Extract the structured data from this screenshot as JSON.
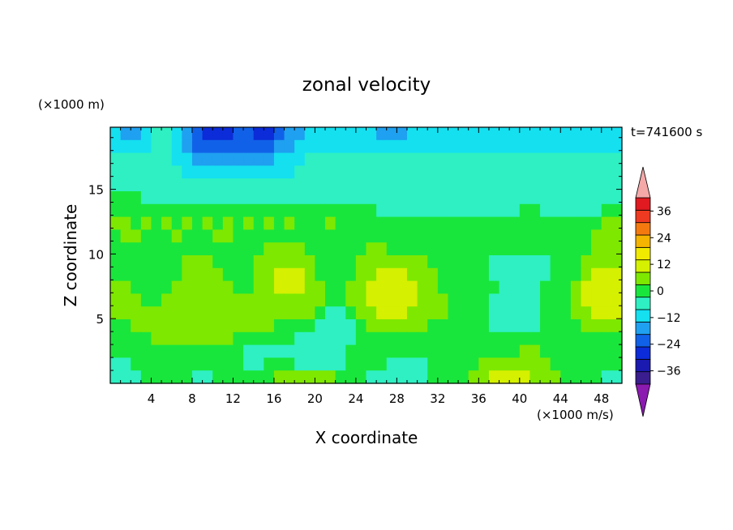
{
  "chart_data": {
    "type": "heatmap",
    "title": "zonal velocity",
    "xlabel": "X coordinate",
    "ylabel": "Z coordinate",
    "x_unit": "(×1000 m/s)",
    "y_unit": "(×1000 m)",
    "time_label": "t=741600 s",
    "xlim": [
      0,
      50
    ],
    "ylim": [
      0,
      19.8
    ],
    "x_ticks": [
      4,
      8,
      12,
      16,
      20,
      24,
      28,
      32,
      36,
      40,
      44,
      48
    ],
    "y_ticks": [
      5,
      10,
      15
    ],
    "colorbar": {
      "levels": [
        -42,
        -36,
        -30,
        -24,
        -18,
        -12,
        -6,
        0,
        6,
        12,
        18,
        24,
        30,
        36,
        42
      ],
      "labels": [
        -36,
        -24,
        -12,
        0,
        12,
        24,
        36
      ],
      "colors": [
        "#7a13a8",
        "#3a1d8e",
        "#1a1ab0",
        "#0b2cd8",
        "#1161e8",
        "#1fa0f0",
        "#14e0f0",
        "#2ef0c2",
        "#19e63c",
        "#7ee800",
        "#d5f000",
        "#f0ea00",
        "#f5b400",
        "#f47a10",
        "#ee3a20",
        "#e01a20",
        "#f4a0a0"
      ],
      "under_color": "#8a1ab0",
      "over_color": "#f4a8a8"
    },
    "field": [
      [
        -12,
        -18,
        -18,
        -12,
        -6,
        -6,
        -12,
        -18,
        -24,
        -30,
        -30,
        -30,
        -24,
        -24,
        -30,
        -30,
        -24,
        -18,
        -18,
        -12,
        -12,
        -12,
        -12,
        -12,
        -12,
        -12,
        -18,
        -18,
        -18,
        -12,
        -12,
        -12,
        -12,
        -12,
        -12,
        -12,
        -12,
        -12,
        -12,
        -12,
        -12,
        -12,
        -12,
        -12,
        -12,
        -12,
        -12,
        -12,
        -12,
        -12
      ],
      [
        -12,
        -12,
        -12,
        -12,
        -6,
        -6,
        -12,
        -18,
        -24,
        -24,
        -24,
        -24,
        -24,
        -24,
        -24,
        -24,
        -18,
        -18,
        -12,
        -12,
        -12,
        -12,
        -12,
        -12,
        -12,
        -12,
        -12,
        -12,
        -12,
        -12,
        -12,
        -12,
        -12,
        -12,
        -12,
        -12,
        -12,
        -12,
        -12,
        -12,
        -12,
        -12,
        -12,
        -12,
        -12,
        -12,
        -12,
        -12,
        -12,
        -12
      ],
      [
        -6,
        -6,
        -6,
        -6,
        -6,
        -6,
        -12,
        -12,
        -18,
        -18,
        -18,
        -18,
        -18,
        -18,
        -18,
        -18,
        -12,
        -12,
        -12,
        -6,
        -6,
        -6,
        -6,
        -6,
        -6,
        -6,
        -6,
        -6,
        -6,
        -6,
        -6,
        -6,
        -6,
        -6,
        -6,
        -6,
        -6,
        -6,
        -6,
        -6,
        -6,
        -6,
        -6,
        -6,
        -6,
        -6,
        -6,
        -6,
        -6,
        -6
      ],
      [
        -6,
        -6,
        -6,
        -6,
        -6,
        -6,
        -6,
        -12,
        -12,
        -12,
        -12,
        -12,
        -12,
        -12,
        -12,
        -12,
        -12,
        -12,
        -6,
        -6,
        -6,
        -6,
        -6,
        -6,
        -6,
        -6,
        -6,
        -6,
        -6,
        -6,
        -6,
        -6,
        -6,
        -6,
        -6,
        -6,
        -6,
        -6,
        -6,
        -6,
        -6,
        -6,
        -6,
        -6,
        -6,
        -6,
        -6,
        -6,
        -6,
        -6
      ],
      [
        -6,
        -6,
        -6,
        -6,
        -6,
        -6,
        -6,
        -6,
        -6,
        -6,
        -6,
        -6,
        -6,
        -6,
        -6,
        -6,
        -6,
        -6,
        -6,
        -6,
        -6,
        -6,
        -6,
        -6,
        -6,
        -6,
        -6,
        -6,
        -6,
        -6,
        -6,
        -6,
        -6,
        -6,
        -6,
        -6,
        -6,
        -6,
        -6,
        -6,
        -6,
        -6,
        -6,
        -6,
        -6,
        -6,
        -6,
        -6,
        -6,
        -6
      ],
      [
        0,
        0,
        0,
        -6,
        -6,
        -6,
        -6,
        -6,
        -6,
        -6,
        -6,
        -6,
        -6,
        -6,
        -6,
        -6,
        -6,
        -6,
        -6,
        -6,
        -6,
        -6,
        -6,
        -6,
        -6,
        -6,
        -6,
        -6,
        -6,
        -6,
        -6,
        -6,
        -6,
        -6,
        -6,
        -6,
        -6,
        -6,
        -6,
        -6,
        -6,
        -6,
        -6,
        -6,
        -6,
        -6,
        -6,
        -6,
        -6,
        -6
      ],
      [
        0,
        0,
        0,
        0,
        0,
        0,
        0,
        0,
        0,
        0,
        0,
        0,
        0,
        0,
        0,
        0,
        0,
        0,
        0,
        0,
        0,
        0,
        0,
        0,
        0,
        0,
        -6,
        -6,
        -6,
        -6,
        -6,
        -6,
        -6,
        -6,
        -6,
        -6,
        -6,
        -6,
        -6,
        -6,
        0,
        0,
        -6,
        -6,
        -6,
        -6,
        -6,
        -6,
        0,
        0
      ],
      [
        6,
        6,
        0,
        6,
        0,
        6,
        0,
        6,
        0,
        6,
        0,
        6,
        0,
        6,
        0,
        6,
        0,
        6,
        0,
        0,
        0,
        6,
        0,
        0,
        0,
        0,
        0,
        0,
        0,
        0,
        0,
        0,
        0,
        0,
        0,
        0,
        0,
        0,
        0,
        0,
        0,
        0,
        0,
        0,
        0,
        0,
        0,
        0,
        6,
        6
      ],
      [
        0,
        6,
        6,
        0,
        0,
        0,
        6,
        0,
        0,
        0,
        6,
        6,
        0,
        0,
        0,
        0,
        0,
        0,
        0,
        0,
        0,
        0,
        0,
        0,
        0,
        0,
        0,
        0,
        0,
        0,
        0,
        0,
        0,
        0,
        0,
        0,
        0,
        0,
        0,
        0,
        0,
        0,
        0,
        0,
        0,
        0,
        0,
        6,
        6,
        6
      ],
      [
        0,
        0,
        0,
        0,
        0,
        0,
        0,
        0,
        0,
        0,
        0,
        0,
        0,
        0,
        0,
        6,
        6,
        6,
        6,
        0,
        0,
        0,
        0,
        0,
        0,
        6,
        6,
        0,
        0,
        0,
        0,
        0,
        0,
        0,
        0,
        0,
        0,
        0,
        0,
        0,
        0,
        0,
        0,
        0,
        0,
        0,
        0,
        6,
        6,
        6
      ],
      [
        0,
        0,
        0,
        0,
        0,
        0,
        0,
        6,
        6,
        6,
        0,
        0,
        0,
        0,
        6,
        6,
        6,
        6,
        6,
        6,
        0,
        0,
        0,
        0,
        6,
        6,
        6,
        6,
        6,
        6,
        6,
        0,
        0,
        0,
        0,
        0,
        0,
        -6,
        -6,
        -6,
        -6,
        -6,
        -6,
        0,
        0,
        0,
        6,
        6,
        6,
        6
      ],
      [
        0,
        0,
        0,
        0,
        0,
        0,
        0,
        6,
        6,
        6,
        6,
        0,
        0,
        0,
        6,
        6,
        12,
        12,
        12,
        6,
        0,
        0,
        0,
        0,
        6,
        6,
        12,
        12,
        12,
        6,
        6,
        6,
        0,
        0,
        0,
        0,
        0,
        -6,
        -6,
        -6,
        -6,
        -6,
        -6,
        0,
        0,
        0,
        6,
        12,
        12,
        12
      ],
      [
        6,
        6,
        0,
        0,
        0,
        0,
        6,
        6,
        6,
        6,
        6,
        6,
        0,
        0,
        6,
        6,
        12,
        12,
        12,
        6,
        6,
        0,
        0,
        6,
        6,
        12,
        12,
        12,
        12,
        12,
        6,
        6,
        0,
        0,
        0,
        0,
        0,
        0,
        -6,
        -6,
        -6,
        -6,
        0,
        0,
        0,
        6,
        12,
        12,
        12,
        12
      ],
      [
        6,
        6,
        6,
        0,
        0,
        6,
        6,
        6,
        6,
        6,
        6,
        6,
        6,
        6,
        6,
        6,
        6,
        6,
        6,
        6,
        6,
        0,
        0,
        6,
        6,
        12,
        12,
        12,
        12,
        12,
        6,
        6,
        6,
        0,
        0,
        0,
        0,
        -6,
        -6,
        -6,
        -6,
        -6,
        0,
        0,
        0,
        6,
        12,
        12,
        12,
        12
      ],
      [
        6,
        6,
        6,
        6,
        6,
        6,
        6,
        6,
        6,
        6,
        6,
        6,
        6,
        6,
        6,
        6,
        6,
        6,
        6,
        6,
        0,
        -6,
        -6,
        0,
        6,
        6,
        12,
        12,
        12,
        6,
        6,
        6,
        6,
        0,
        0,
        0,
        0,
        -6,
        -6,
        -6,
        -6,
        -6,
        0,
        0,
        0,
        6,
        6,
        12,
        12,
        12
      ],
      [
        0,
        0,
        6,
        6,
        6,
        6,
        6,
        6,
        6,
        6,
        6,
        6,
        6,
        6,
        6,
        6,
        0,
        0,
        0,
        0,
        -6,
        -6,
        -6,
        -6,
        0,
        6,
        6,
        6,
        6,
        6,
        6,
        0,
        0,
        0,
        0,
        0,
        0,
        -6,
        -6,
        -6,
        -6,
        -6,
        0,
        0,
        0,
        0,
        6,
        6,
        6,
        6
      ],
      [
        0,
        0,
        0,
        0,
        6,
        6,
        6,
        6,
        6,
        6,
        6,
        6,
        0,
        0,
        0,
        0,
        0,
        0,
        -6,
        -6,
        -6,
        -6,
        -6,
        -6,
        0,
        0,
        0,
        0,
        0,
        0,
        0,
        0,
        0,
        0,
        0,
        0,
        0,
        0,
        0,
        0,
        0,
        0,
        0,
        0,
        0,
        0,
        0,
        0,
        0,
        0
      ],
      [
        0,
        0,
        0,
        0,
        0,
        0,
        0,
        0,
        0,
        0,
        0,
        0,
        0,
        -6,
        -6,
        -6,
        -6,
        -6,
        -6,
        -6,
        -6,
        -6,
        -6,
        0,
        0,
        0,
        0,
        0,
        0,
        0,
        0,
        0,
        0,
        0,
        0,
        0,
        0,
        0,
        0,
        0,
        6,
        6,
        0,
        0,
        0,
        0,
        0,
        0,
        0,
        0
      ],
      [
        -6,
        -6,
        0,
        0,
        0,
        0,
        0,
        0,
        0,
        0,
        0,
        0,
        0,
        -6,
        -6,
        0,
        0,
        0,
        -6,
        -6,
        -6,
        -6,
        -6,
        0,
        0,
        0,
        0,
        -6,
        -6,
        -6,
        -6,
        0,
        0,
        0,
        0,
        0,
        6,
        6,
        6,
        6,
        6,
        6,
        6,
        0,
        0,
        0,
        0,
        0,
        0,
        0
      ],
      [
        -6,
        -6,
        -6,
        0,
        0,
        0,
        0,
        0,
        -6,
        -6,
        0,
        0,
        0,
        0,
        0,
        0,
        6,
        6,
        6,
        6,
        6,
        6,
        0,
        0,
        0,
        -6,
        -6,
        -6,
        -6,
        -6,
        -6,
        0,
        0,
        0,
        0,
        6,
        6,
        12,
        12,
        12,
        12,
        6,
        6,
        6,
        0,
        0,
        0,
        0,
        -6,
        -6
      ]
    ]
  }
}
